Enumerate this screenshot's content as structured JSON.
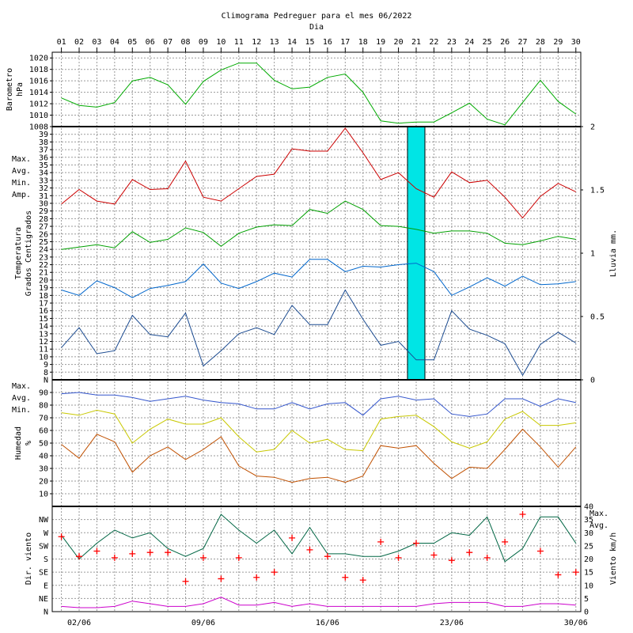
{
  "chart_data": {
    "type": "line",
    "title": "Climograma Pedreguer para el mes 06/2022",
    "xlabel": "Dia",
    "days": [
      "01",
      "02",
      "03",
      "04",
      "05",
      "06",
      "07",
      "08",
      "09",
      "10",
      "11",
      "12",
      "13",
      "14",
      "15",
      "16",
      "17",
      "18",
      "19",
      "20",
      "21",
      "22",
      "23",
      "24",
      "25",
      "26",
      "27",
      "28",
      "29",
      "30"
    ],
    "date_labels": [
      "02/06",
      "09/06",
      "16/06",
      "23/06",
      "30/06"
    ],
    "grid": true,
    "colors": {
      "max": "#cc0000",
      "avg": "#00a000",
      "min": "#0066cc",
      "amp": "#1a4a90",
      "rain": "#00e5e5",
      "hum_max": "#3355cc",
      "hum_avg": "#c8c800",
      "hum_min": "#c05000",
      "wind_dir": "#ff0000",
      "wind_max": "#006644",
      "wind_avg": "#cc00cc",
      "baro": "#00aa00"
    },
    "barometer": {
      "ylabel": "Barometro hPa",
      "ticks": [
        "1008",
        "1010",
        "1012",
        "1014",
        "1016",
        "1018",
        "1020"
      ],
      "ylim": [
        1008,
        1021
      ],
      "values": [
        1013.0,
        1011.7,
        1011.4,
        1012.2,
        1016.0,
        1016.6,
        1015.3,
        1011.9,
        1015.9,
        1017.9,
        1019.1,
        1019.1,
        1016.1,
        1014.6,
        1014.9,
        1016.6,
        1017.2,
        1014.0,
        1009.0,
        1008.6,
        1008.8,
        1008.8,
        1010.4,
        1012.1,
        1009.3,
        1008.3,
        1012.2,
        1016.1,
        1012.4,
        1010.2
      ]
    },
    "temperature": {
      "ylabel": "Temperatura Grados Centigrados",
      "ticks": [
        "8",
        "9",
        "10",
        "11",
        "12",
        "13",
        "14",
        "15",
        "16",
        "17",
        "18",
        "19",
        "20",
        "21",
        "22",
        "23",
        "24",
        "25",
        "26",
        "27",
        "28",
        "29",
        "30",
        "31",
        "32",
        "33",
        "34",
        "35",
        "36",
        "37",
        "38",
        "39"
      ],
      "ylim": [
        7,
        40
      ],
      "series": [
        {
          "name": "Max.",
          "values": [
            29.9,
            31.8,
            30.3,
            29.9,
            33.1,
            31.8,
            31.9,
            35.5,
            30.8,
            30.3,
            31.9,
            33.5,
            33.8,
            37.1,
            36.8,
            36.8,
            39.8,
            36.6,
            33.1,
            34.0,
            31.9,
            30.8,
            34.1,
            32.7,
            33.0,
            30.8,
            28.1,
            30.9,
            32.6,
            31.5
          ]
        },
        {
          "name": "Avg.",
          "values": [
            24.0,
            24.3,
            24.6,
            24.2,
            26.3,
            24.9,
            25.3,
            26.8,
            26.2,
            24.4,
            26.1,
            26.9,
            27.2,
            27.1,
            29.2,
            28.7,
            30.3,
            29.2,
            27.1,
            27.0,
            26.6,
            26.1,
            26.4,
            26.4,
            26.1,
            24.8,
            24.6,
            25.1,
            25.7,
            25.3
          ]
        },
        {
          "name": "Min.",
          "values": [
            18.7,
            18.0,
            19.9,
            19.0,
            17.7,
            18.9,
            19.3,
            19.8,
            22.1,
            19.6,
            18.9,
            19.8,
            20.9,
            20.4,
            22.7,
            22.7,
            21.1,
            21.8,
            21.7,
            22.0,
            22.2,
            21.1,
            18.0,
            19.1,
            20.3,
            19.2,
            20.5,
            19.4,
            19.5,
            19.8
          ]
        },
        {
          "name": "Amp.",
          "values": [
            11.2,
            13.8,
            10.4,
            10.8,
            15.4,
            12.9,
            12.6,
            15.7,
            8.8,
            10.8,
            13.0,
            13.8,
            12.9,
            16.7,
            14.2,
            14.2,
            18.7,
            14.9,
            11.5,
            12.0,
            9.6,
            9.6,
            16.0,
            13.6,
            12.8,
            11.7,
            7.6,
            11.6,
            13.2,
            11.8
          ]
        }
      ]
    },
    "rain": {
      "ylabel": "Lluvia mm.",
      "ticks": [
        "0",
        "0.5",
        "1",
        "1.5",
        "2"
      ],
      "ylim": [
        0,
        2
      ],
      "values": [
        0,
        0,
        0,
        0,
        0,
        0,
        0,
        0,
        0,
        0,
        0,
        0,
        0,
        0,
        0,
        0,
        0,
        0,
        0,
        0,
        2,
        0,
        0,
        0,
        0,
        0,
        0,
        0,
        0,
        0
      ]
    },
    "humidity": {
      "ylabel": "Humedad %",
      "ticks": [
        "10",
        "20",
        "30",
        "40",
        "50",
        "60",
        "70",
        "80",
        "90"
      ],
      "ylim": [
        0,
        100
      ],
      "series": [
        {
          "name": "Max.",
          "values": [
            89,
            90,
            88,
            88,
            86,
            83,
            85,
            87,
            84,
            82,
            81,
            77,
            77,
            82,
            77,
            81,
            82,
            72,
            85,
            87,
            84,
            85,
            73,
            71,
            73,
            85,
            85,
            79,
            85,
            82
          ]
        },
        {
          "name": "Avg.",
          "values": [
            74,
            72,
            76,
            73,
            50,
            61,
            69,
            65,
            65,
            70,
            55,
            43,
            45,
            60,
            50,
            53,
            45,
            44,
            69,
            71,
            72,
            63,
            51,
            46,
            51,
            69,
            75,
            64,
            64,
            66
          ]
        },
        {
          "name": "Min.",
          "values": [
            49,
            38,
            57,
            51,
            27,
            40,
            47,
            37,
            45,
            55,
            32,
            24,
            23,
            19,
            22,
            23,
            19,
            24,
            48,
            46,
            48,
            34,
            22,
            31,
            30,
            45,
            61,
            47,
            31,
            47
          ]
        }
      ]
    },
    "wind": {
      "ylabel_dir": "Dir. viento",
      "ylabel_speed": "Viento km/h",
      "dir_ticks": [
        "N",
        "NE",
        "E",
        "SE",
        "S",
        "SW",
        "W",
        "NW",
        "N"
      ],
      "speed_ticks": [
        "0",
        "5",
        "10",
        "15",
        "20",
        "25",
        "30",
        "35",
        "40"
      ],
      "speed_ylim": [
        0,
        40
      ],
      "series": [
        {
          "name": "Max.",
          "values": [
            29,
            20,
            26,
            31,
            28,
            30,
            24,
            21,
            24,
            37,
            31,
            26,
            31,
            22,
            32,
            22,
            22,
            21,
            21,
            23,
            26,
            26,
            30,
            29,
            36,
            19,
            24,
            36,
            36,
            26
          ]
        },
        {
          "name": "Avg.",
          "values": [
            2,
            1.5,
            1.5,
            2,
            4,
            3,
            2,
            2,
            3,
            5.5,
            2.5,
            2.5,
            3.5,
            2,
            3,
            2,
            2,
            2,
            2,
            2,
            2,
            3,
            3.5,
            3.5,
            3.5,
            2,
            2,
            3,
            3,
            2.5
          ]
        },
        {
          "name": "Dir.",
          "values": [
            5.7,
            4.2,
            4.6,
            4.1,
            4.4,
            4.5,
            4.5,
            2.3,
            4.1,
            2.5,
            4.1,
            2.6,
            3.0,
            5.6,
            4.7,
            4.2,
            2.6,
            2.4,
            5.3,
            4.1,
            5.2,
            4.3,
            3.9,
            4.5,
            4.1,
            5.3,
            7.4,
            4.6,
            2.8,
            3.0
          ]
        }
      ]
    }
  }
}
